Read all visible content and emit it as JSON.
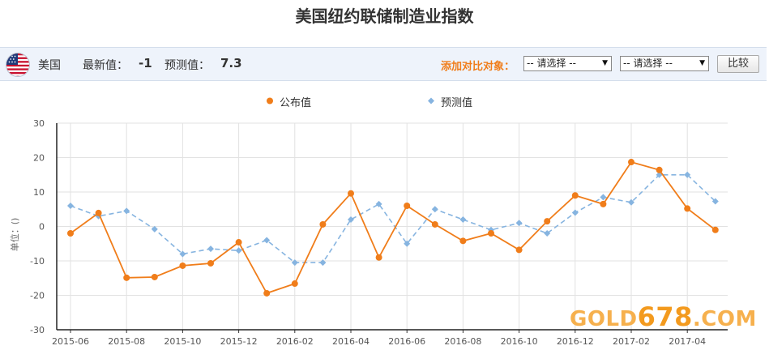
{
  "page": {
    "title": "美国纽约联储制造业指数"
  },
  "toolbar": {
    "country": "美国",
    "latest_label": "最新值：",
    "latest_value": "-1",
    "forecast_label": "预测值：",
    "forecast_value": "7.3",
    "compare_label": "添加对比对象：",
    "select1": "-- 请选择 --",
    "select2": "-- 请选择 --",
    "compare_button": "比较"
  },
  "icons": {
    "flag": "us-flag-icon",
    "select_arrow": "dropdown-arrow-icon"
  },
  "watermark": {
    "prefix": "GOLD",
    "number": "678",
    "suffix": ".COM"
  },
  "chart_data": {
    "type": "line",
    "title": "",
    "ylabel": "单位：()",
    "ylim": [
      -30,
      30
    ],
    "yticks": [
      30,
      20,
      10,
      0,
      -10,
      -20,
      -30
    ],
    "grid": true,
    "legend_position": "top-center",
    "x": [
      "2015-06",
      "2015-07",
      "2015-08",
      "2015-09",
      "2015-10",
      "2015-11",
      "2015-12",
      "2016-01",
      "2016-02",
      "2016-03",
      "2016-04",
      "2016-05",
      "2016-06",
      "2016-07",
      "2016-08",
      "2016-09",
      "2016-10",
      "2016-11",
      "2016-12",
      "2017-01",
      "2017-02",
      "2017-03",
      "2017-04",
      "2017-05"
    ],
    "xtick_labels": [
      "2015-06",
      "2015-08",
      "2015-10",
      "2015-12",
      "2016-02",
      "2016-04",
      "2016-06",
      "2016-08",
      "2016-10",
      "2016-12",
      "2017-02",
      "2017-04"
    ],
    "series": [
      {
        "name": "公布值",
        "color": "#f07d1a",
        "style": "solid",
        "values": [
          -2,
          3.9,
          -14.9,
          -14.7,
          -11.4,
          -10.7,
          -4.6,
          -19.4,
          -16.6,
          0.6,
          9.6,
          -9,
          6,
          0.6,
          -4.2,
          -2,
          -6.8,
          1.5,
          9,
          6.5,
          18.7,
          16.4,
          5.2,
          -1
        ]
      },
      {
        "name": "预测值",
        "color": "#86b4e0",
        "style": "dashed",
        "values": [
          6,
          3,
          4.5,
          -0.8,
          -8,
          -6.5,
          -7,
          -4,
          -10.5,
          -10.5,
          2,
          6.5,
          -5,
          5,
          2,
          -1,
          1,
          -2,
          4,
          8.5,
          7,
          15,
          15,
          7.3
        ]
      }
    ]
  }
}
